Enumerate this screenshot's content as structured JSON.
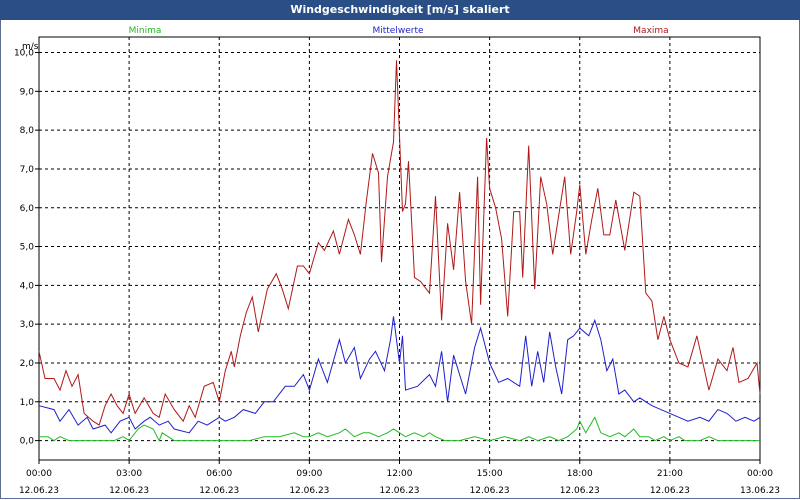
{
  "chart_data": {
    "type": "line",
    "title": "Windgeschwindigkeit [m/s] skaliert",
    "ylabel": "m/s",
    "ylim": [
      -0.5,
      10.4
    ],
    "xlim": [
      0,
      24
    ],
    "grid": true,
    "legend": "top",
    "yticks": [
      0,
      1,
      2,
      3,
      4,
      5,
      6,
      7,
      8,
      9,
      10
    ],
    "ytick_labels": [
      "0,0",
      "1,0",
      "2,0",
      "3,0",
      "4,0",
      "5,0",
      "6,0",
      "7,0",
      "8,0",
      "9,0",
      "10,0"
    ],
    "xticks": [
      {
        "x": 0,
        "time": "00:00",
        "date": "12.06.23"
      },
      {
        "x": 3,
        "time": "03:00",
        "date": "12.06.23"
      },
      {
        "x": 6,
        "time": "06:00",
        "date": "12.06.23"
      },
      {
        "x": 9,
        "time": "09:00",
        "date": "12.06.23"
      },
      {
        "x": 12,
        "time": "12:00",
        "date": "12.06.23"
      },
      {
        "x": 15,
        "time": "15:00",
        "date": "12.06.23"
      },
      {
        "x": 18,
        "time": "18:00",
        "date": "12.06.23"
      },
      {
        "x": 21,
        "time": "21:00",
        "date": "12.06.23"
      },
      {
        "x": 24,
        "time": "00:00",
        "date": "13.06.23"
      }
    ],
    "series": [
      {
        "name": "Minima",
        "color": "#22bb22",
        "points": [
          [
            0,
            0.1
          ],
          [
            0.3,
            0.1
          ],
          [
            0.5,
            0
          ],
          [
            0.7,
            0.1
          ],
          [
            1,
            0
          ],
          [
            2,
            0
          ],
          [
            2.5,
            0
          ],
          [
            2.8,
            0.1
          ],
          [
            3,
            0
          ],
          [
            3.3,
            0.3
          ],
          [
            3.5,
            0.4
          ],
          [
            3.8,
            0.3
          ],
          [
            4,
            0
          ],
          [
            4.1,
            0.2
          ],
          [
            4.3,
            0.1
          ],
          [
            4.5,
            0
          ],
          [
            6,
            0
          ],
          [
            7,
            0
          ],
          [
            7.5,
            0.1
          ],
          [
            8,
            0.1
          ],
          [
            8.5,
            0.2
          ],
          [
            8.8,
            0.1
          ],
          [
            9,
            0.1
          ],
          [
            9.3,
            0.2
          ],
          [
            9.6,
            0.1
          ],
          [
            10,
            0.2
          ],
          [
            10.2,
            0.3
          ],
          [
            10.5,
            0.1
          ],
          [
            10.8,
            0.2
          ],
          [
            11,
            0.2
          ],
          [
            11.3,
            0.1
          ],
          [
            11.6,
            0.2
          ],
          [
            11.8,
            0.3
          ],
          [
            12,
            0.2
          ],
          [
            12.2,
            0.1
          ],
          [
            12.5,
            0.2
          ],
          [
            12.8,
            0.1
          ],
          [
            13,
            0.2
          ],
          [
            13.2,
            0.1
          ],
          [
            13.5,
            0
          ],
          [
            14,
            0
          ],
          [
            14.5,
            0.1
          ],
          [
            15,
            0
          ],
          [
            15.5,
            0.1
          ],
          [
            16,
            0
          ],
          [
            16.3,
            0.1
          ],
          [
            16.6,
            0
          ],
          [
            17,
            0.1
          ],
          [
            17.3,
            0
          ],
          [
            17.6,
            0.1
          ],
          [
            17.9,
            0.3
          ],
          [
            18,
            0.5
          ],
          [
            18.2,
            0.2
          ],
          [
            18.5,
            0.6
          ],
          [
            18.7,
            0.2
          ],
          [
            19,
            0.1
          ],
          [
            19.3,
            0.2
          ],
          [
            19.5,
            0.1
          ],
          [
            19.8,
            0.3
          ],
          [
            20,
            0.1
          ],
          [
            20.3,
            0.1
          ],
          [
            20.5,
            0
          ],
          [
            20.8,
            0.1
          ],
          [
            21,
            0
          ],
          [
            21.3,
            0.1
          ],
          [
            21.5,
            0
          ],
          [
            22,
            0
          ],
          [
            22.3,
            0.1
          ],
          [
            22.6,
            0
          ],
          [
            23,
            0
          ],
          [
            24,
            0
          ]
        ]
      },
      {
        "name": "Mittelwerte",
        "color": "#1f1fcc",
        "points": [
          [
            0,
            0.9
          ],
          [
            0.5,
            0.8
          ],
          [
            0.7,
            0.5
          ],
          [
            1,
            0.8
          ],
          [
            1.3,
            0.4
          ],
          [
            1.6,
            0.6
          ],
          [
            1.8,
            0.3
          ],
          [
            2.2,
            0.4
          ],
          [
            2.4,
            0.2
          ],
          [
            2.7,
            0.5
          ],
          [
            3,
            0.6
          ],
          [
            3.2,
            0.3
          ],
          [
            3.5,
            0.5
          ],
          [
            3.7,
            0.6
          ],
          [
            4,
            0.4
          ],
          [
            4.3,
            0.5
          ],
          [
            4.5,
            0.3
          ],
          [
            5,
            0.2
          ],
          [
            5.3,
            0.5
          ],
          [
            5.6,
            0.4
          ],
          [
            6,
            0.6
          ],
          [
            6.2,
            0.5
          ],
          [
            6.5,
            0.6
          ],
          [
            6.8,
            0.8
          ],
          [
            7.2,
            0.7
          ],
          [
            7.5,
            1
          ],
          [
            7.8,
            1
          ],
          [
            8.2,
            1.4
          ],
          [
            8.5,
            1.4
          ],
          [
            8.8,
            1.7
          ],
          [
            9,
            1.3
          ],
          [
            9.3,
            2.1
          ],
          [
            9.6,
            1.5
          ],
          [
            10,
            2.6
          ],
          [
            10.2,
            2
          ],
          [
            10.5,
            2.4
          ],
          [
            10.7,
            1.6
          ],
          [
            11,
            2.1
          ],
          [
            11.2,
            2.3
          ],
          [
            11.5,
            1.8
          ],
          [
            11.7,
            2.6
          ],
          [
            11.8,
            3.2
          ],
          [
            12,
            2
          ],
          [
            12.1,
            2.7
          ],
          [
            12.2,
            1.3
          ],
          [
            12.6,
            1.4
          ],
          [
            13,
            1.7
          ],
          [
            13.2,
            1.4
          ],
          [
            13.4,
            2.3
          ],
          [
            13.6,
            1
          ],
          [
            13.8,
            2.2
          ],
          [
            14,
            1.7
          ],
          [
            14.2,
            1.2
          ],
          [
            14.5,
            2.4
          ],
          [
            14.7,
            2.9
          ],
          [
            15,
            2
          ],
          [
            15.3,
            1.5
          ],
          [
            15.6,
            1.6
          ],
          [
            15.8,
            1.5
          ],
          [
            16,
            1.4
          ],
          [
            16.2,
            2.7
          ],
          [
            16.4,
            1.4
          ],
          [
            16.6,
            2.3
          ],
          [
            16.8,
            1.5
          ],
          [
            17,
            2.8
          ],
          [
            17.2,
            1.9
          ],
          [
            17.4,
            1.2
          ],
          [
            17.6,
            2.6
          ],
          [
            17.8,
            2.7
          ],
          [
            18,
            2.9
          ],
          [
            18.3,
            2.7
          ],
          [
            18.5,
            3.1
          ],
          [
            18.7,
            2.6
          ],
          [
            18.9,
            1.8
          ],
          [
            19.1,
            2.1
          ],
          [
            19.3,
            1.2
          ],
          [
            19.5,
            1.3
          ],
          [
            19.8,
            1
          ],
          [
            20,
            1.1
          ],
          [
            20.4,
            0.9
          ],
          [
            20.7,
            0.8
          ],
          [
            21,
            0.7
          ],
          [
            21.3,
            0.6
          ],
          [
            21.6,
            0.5
          ],
          [
            22,
            0.6
          ],
          [
            22.3,
            0.5
          ],
          [
            22.6,
            0.8
          ],
          [
            22.9,
            0.7
          ],
          [
            23.2,
            0.5
          ],
          [
            23.5,
            0.6
          ],
          [
            23.8,
            0.5
          ],
          [
            24,
            0.6
          ]
        ]
      },
      {
        "name": "Maxima",
        "color": "#b01818",
        "points": [
          [
            0,
            2.3
          ],
          [
            0.2,
            1.6
          ],
          [
            0.5,
            1.6
          ],
          [
            0.7,
            1.3
          ],
          [
            0.9,
            1.8
          ],
          [
            1.1,
            1.4
          ],
          [
            1.3,
            1.7
          ],
          [
            1.5,
            0.7
          ],
          [
            1.8,
            0.5
          ],
          [
            2,
            0.4
          ],
          [
            2.2,
            0.9
          ],
          [
            2.4,
            1.2
          ],
          [
            2.6,
            0.9
          ],
          [
            2.8,
            0.7
          ],
          [
            3,
            1.2
          ],
          [
            3.2,
            0.7
          ],
          [
            3.5,
            1.1
          ],
          [
            3.8,
            0.7
          ],
          [
            4,
            0.6
          ],
          [
            4.2,
            1.2
          ],
          [
            4.5,
            0.8
          ],
          [
            4.8,
            0.5
          ],
          [
            5,
            0.9
          ],
          [
            5.2,
            0.6
          ],
          [
            5.5,
            1.4
          ],
          [
            5.8,
            1.5
          ],
          [
            6,
            1
          ],
          [
            6.2,
            1.8
          ],
          [
            6.4,
            2.3
          ],
          [
            6.5,
            1.9
          ],
          [
            6.7,
            2.7
          ],
          [
            6.9,
            3.3
          ],
          [
            7.1,
            3.7
          ],
          [
            7.3,
            2.8
          ],
          [
            7.6,
            3.9
          ],
          [
            7.9,
            4.3
          ],
          [
            8.1,
            3.9
          ],
          [
            8.3,
            3.4
          ],
          [
            8.6,
            4.5
          ],
          [
            8.8,
            4.5
          ],
          [
            9,
            4.3
          ],
          [
            9.3,
            5.1
          ],
          [
            9.5,
            4.9
          ],
          [
            9.8,
            5.4
          ],
          [
            10,
            4.8
          ],
          [
            10.3,
            5.7
          ],
          [
            10.5,
            5.3
          ],
          [
            10.7,
            4.8
          ],
          [
            10.9,
            6.2
          ],
          [
            11.1,
            7.4
          ],
          [
            11.3,
            6.9
          ],
          [
            11.4,
            4.6
          ],
          [
            11.6,
            6.8
          ],
          [
            11.8,
            7.7
          ],
          [
            11.9,
            9.8
          ],
          [
            12.1,
            5.9
          ],
          [
            12.2,
            6.1
          ],
          [
            12.3,
            7.2
          ],
          [
            12.5,
            4.2
          ],
          [
            12.7,
            4.1
          ],
          [
            13,
            3.8
          ],
          [
            13.2,
            6.3
          ],
          [
            13.4,
            3.1
          ],
          [
            13.6,
            5.6
          ],
          [
            13.8,
            4.4
          ],
          [
            14,
            6.4
          ],
          [
            14.2,
            4.1
          ],
          [
            14.4,
            3
          ],
          [
            14.6,
            6.8
          ],
          [
            14.7,
            3.5
          ],
          [
            14.9,
            7.8
          ],
          [
            15,
            6.5
          ],
          [
            15.2,
            6
          ],
          [
            15.4,
            5.2
          ],
          [
            15.6,
            3.2
          ],
          [
            15.8,
            5.9
          ],
          [
            16,
            5.9
          ],
          [
            16.1,
            4.2
          ],
          [
            16.3,
            7.6
          ],
          [
            16.5,
            3.9
          ],
          [
            16.7,
            6.8
          ],
          [
            16.9,
            6.1
          ],
          [
            17.1,
            4.8
          ],
          [
            17.3,
            5.8
          ],
          [
            17.5,
            6.8
          ],
          [
            17.7,
            4.8
          ],
          [
            17.9,
            5.9
          ],
          [
            18,
            6.6
          ],
          [
            18.2,
            4.8
          ],
          [
            18.4,
            5.7
          ],
          [
            18.6,
            6.5
          ],
          [
            18.8,
            5.3
          ],
          [
            19,
            5.3
          ],
          [
            19.2,
            6.2
          ],
          [
            19.5,
            4.9
          ],
          [
            19.8,
            6.4
          ],
          [
            20,
            6.3
          ],
          [
            20.2,
            3.8
          ],
          [
            20.4,
            3.6
          ],
          [
            20.6,
            2.6
          ],
          [
            20.8,
            3.2
          ],
          [
            21,
            2.6
          ],
          [
            21.3,
            2
          ],
          [
            21.6,
            1.9
          ],
          [
            21.9,
            2.7
          ],
          [
            22.1,
            2
          ],
          [
            22.3,
            1.3
          ],
          [
            22.6,
            2.1
          ],
          [
            22.9,
            1.8
          ],
          [
            23.1,
            2.4
          ],
          [
            23.3,
            1.5
          ],
          [
            23.6,
            1.6
          ],
          [
            23.9,
            2
          ],
          [
            24,
            1.2
          ]
        ]
      }
    ]
  }
}
